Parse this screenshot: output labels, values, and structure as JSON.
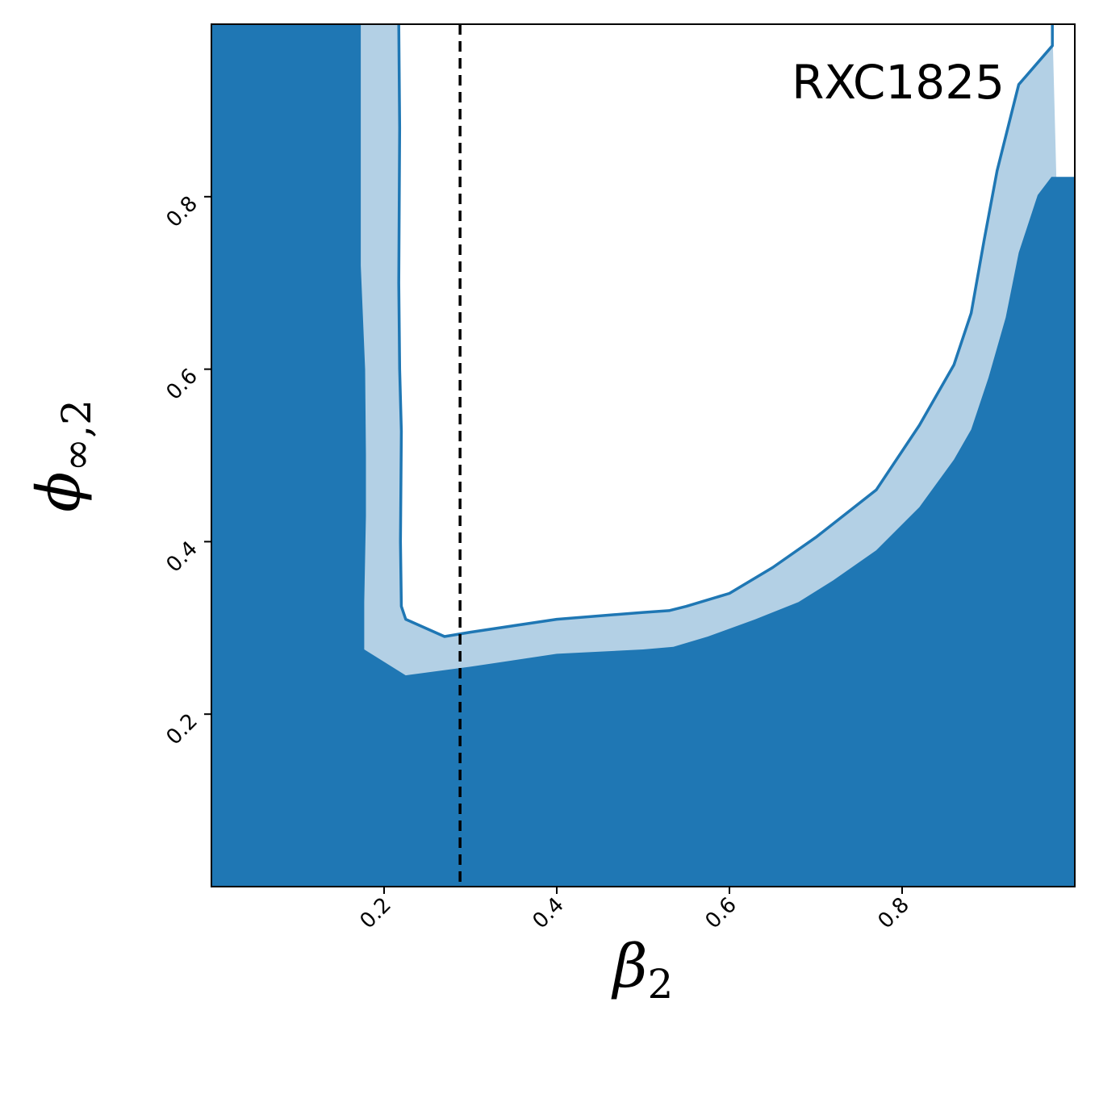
{
  "chart_data": {
    "type": "contour",
    "annotation": "RXC1825",
    "xlabel": {
      "symbol": "β",
      "subscript": "2"
    },
    "ylabel": {
      "symbol": "ϕ",
      "subscript": "∞,2"
    },
    "xlim": [
      0.0,
      1.0
    ],
    "ylim": [
      0.0,
      1.0
    ],
    "x_ticks": [
      0.2,
      0.4,
      0.6,
      0.8
    ],
    "y_ticks": [
      0.2,
      0.4,
      0.6,
      0.8
    ],
    "x_tick_labels": [
      "0.2",
      "0.4",
      "0.6",
      "0.8"
    ],
    "y_tick_labels": [
      "0.2",
      "0.4",
      "0.6",
      "0.8"
    ],
    "grid": false,
    "reference_line": {
      "orientation": "vertical",
      "x": 0.288,
      "style": "dashed",
      "color": "#000000"
    },
    "regions": [
      {
        "id": "inner",
        "level": "1-sigma",
        "color": "#1f77b4",
        "boundary": [
          [
            0.173,
            1.0
          ],
          [
            0.173,
            0.72
          ],
          [
            0.178,
            0.6
          ],
          [
            0.179,
            0.5
          ],
          [
            0.179,
            0.43
          ],
          [
            0.177,
            0.33
          ],
          [
            0.177,
            0.275
          ],
          [
            0.225,
            0.245
          ],
          [
            0.3,
            0.255
          ],
          [
            0.4,
            0.27
          ],
          [
            0.5,
            0.275
          ],
          [
            0.535,
            0.278
          ],
          [
            0.575,
            0.29
          ],
          [
            0.63,
            0.31
          ],
          [
            0.68,
            0.33
          ],
          [
            0.72,
            0.355
          ],
          [
            0.77,
            0.39
          ],
          [
            0.82,
            0.44
          ],
          [
            0.86,
            0.495
          ],
          [
            0.88,
            0.53
          ],
          [
            0.9,
            0.59
          ],
          [
            0.92,
            0.66
          ],
          [
            0.935,
            0.735
          ],
          [
            0.957,
            0.802
          ],
          [
            0.973,
            0.823
          ],
          [
            1.0,
            0.823
          ]
        ]
      },
      {
        "id": "outer",
        "level": "2-sigma",
        "color": "#b3d0e5",
        "edge_color": "#1f77b4",
        "boundary": [
          [
            0.217,
            1.0
          ],
          [
            0.218,
            0.88
          ],
          [
            0.217,
            0.7
          ],
          [
            0.218,
            0.6
          ],
          [
            0.22,
            0.528
          ],
          [
            0.219,
            0.4
          ],
          [
            0.22,
            0.325
          ],
          [
            0.225,
            0.31
          ],
          [
            0.27,
            0.29
          ],
          [
            0.3,
            0.295
          ],
          [
            0.4,
            0.31
          ],
          [
            0.5,
            0.318
          ],
          [
            0.53,
            0.32
          ],
          [
            0.55,
            0.325
          ],
          [
            0.6,
            0.34
          ],
          [
            0.65,
            0.37
          ],
          [
            0.7,
            0.405
          ],
          [
            0.77,
            0.46
          ],
          [
            0.82,
            0.535
          ],
          [
            0.86,
            0.605
          ],
          [
            0.88,
            0.665
          ],
          [
            0.895,
            0.75
          ],
          [
            0.91,
            0.83
          ],
          [
            0.935,
            0.93
          ],
          [
            0.974,
            0.975
          ],
          [
            0.974,
            1.0
          ]
        ]
      }
    ]
  }
}
